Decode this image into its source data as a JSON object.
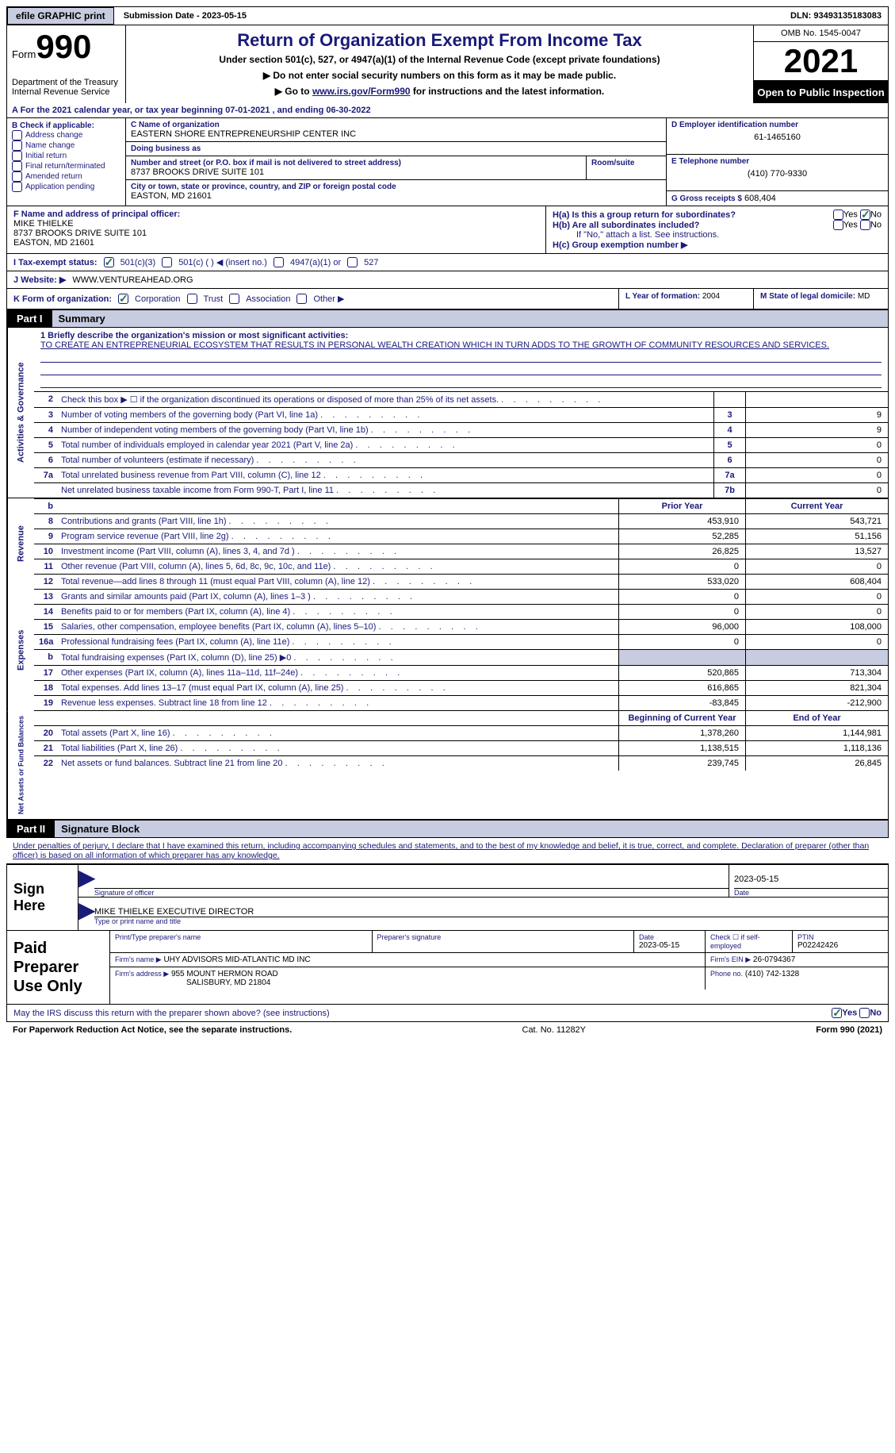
{
  "topbar": {
    "efile": "efile GRAPHIC print",
    "submission": "Submission Date - 2023-05-15",
    "dln": "DLN: 93493135183083"
  },
  "header": {
    "form_label": "Form",
    "form_number": "990",
    "dept": "Department of the Treasury Internal Revenue Service",
    "title": "Return of Organization Exempt From Income Tax",
    "sub1": "Under section 501(c), 527, or 4947(a)(1) of the Internal Revenue Code (except private foundations)",
    "sub2": "▶ Do not enter social security numbers on this form as it may be made public.",
    "sub3_pre": "▶ Go to ",
    "sub3_link": "www.irs.gov/Form990",
    "sub3_post": " for instructions and the latest information.",
    "omb": "OMB No. 1545-0047",
    "year": "2021",
    "open": "Open to Public Inspection"
  },
  "row_a": "A For the 2021 calendar year, or tax year beginning 07-01-2021    , and ending 06-30-2022",
  "section_b": {
    "label": "B Check if applicable:",
    "items": [
      "Address change",
      "Name change",
      "Initial return",
      "Final return/terminated",
      "Amended return",
      "Application pending"
    ]
  },
  "section_c": {
    "name_label": "C Name of organization",
    "name": "EASTERN SHORE ENTREPRENEURSHIP CENTER INC",
    "dba_label": "Doing business as",
    "dba": "",
    "street_label": "Number and street (or P.O. box if mail is not delivered to street address)",
    "street": "8737 BROOKS DRIVE SUITE 101",
    "room_label": "Room/suite",
    "city_label": "City or town, state or province, country, and ZIP or foreign postal code",
    "city": "EASTON, MD  21601"
  },
  "section_d": {
    "label": "D Employer identification number",
    "value": "61-1465160"
  },
  "section_e": {
    "label": "E Telephone number",
    "value": "(410) 770-9330"
  },
  "section_g": {
    "label": "G Gross receipts $",
    "value": "608,404"
  },
  "section_f": {
    "label": "F  Name and address of principal officer:",
    "name": "MIKE THIELKE",
    "addr1": "8737 BROOKS DRIVE SUITE 101",
    "addr2": "EASTON, MD  21601"
  },
  "section_h": {
    "ha": "H(a)  Is this a group return for subordinates?",
    "hb": "H(b)  Are all subordinates included?",
    "hb_note": "If \"No,\" attach a list. See instructions.",
    "hc": "H(c)  Group exemption number ▶"
  },
  "row_i": {
    "label": "I  Tax-exempt status:",
    "opts": [
      "501(c)(3)",
      "501(c) (  ) ◀ (insert no.)",
      "4947(a)(1) or",
      "527"
    ]
  },
  "row_j": {
    "label": "J  Website: ▶",
    "value": "WWW.VENTUREAHEAD.ORG"
  },
  "row_k": {
    "label": "K Form of organization:",
    "opts": [
      "Corporation",
      "Trust",
      "Association",
      "Other ▶"
    ],
    "l_label": "L Year of formation:",
    "l_val": "2004",
    "m_label": "M State of legal domicile:",
    "m_val": "MD"
  },
  "part1": {
    "num": "Part I",
    "title": "Summary"
  },
  "mission": {
    "label": "1   Briefly describe the organization's mission or most significant activities:",
    "text": "TO CREATE AN ENTREPRENEURIAL ECOSYSTEM THAT RESULTS IN PERSONAL WEALTH CREATION WHICH IN TURN ADDS TO THE GROWTH OF COMMUNITY RESOURCES AND SERVICES."
  },
  "lines_ag": [
    {
      "n": "2",
      "d": "Check this box ▶ ☐  if the organization discontinued its operations or disposed of more than 25% of its net assets.",
      "box": "",
      "v": ""
    },
    {
      "n": "3",
      "d": "Number of voting members of the governing body (Part VI, line 1a)",
      "box": "3",
      "v": "9"
    },
    {
      "n": "4",
      "d": "Number of independent voting members of the governing body (Part VI, line 1b)",
      "box": "4",
      "v": "9"
    },
    {
      "n": "5",
      "d": "Total number of individuals employed in calendar year 2021 (Part V, line 2a)",
      "box": "5",
      "v": "0"
    },
    {
      "n": "6",
      "d": "Total number of volunteers (estimate if necessary)",
      "box": "6",
      "v": "0"
    },
    {
      "n": "7a",
      "d": "Total unrelated business revenue from Part VIII, column (C), line 12",
      "box": "7a",
      "v": "0"
    },
    {
      "n": "",
      "d": "Net unrelated business taxable income from Form 990-T, Part I, line 11",
      "box": "7b",
      "v": "0"
    }
  ],
  "col_hdrs": {
    "prior": "Prior Year",
    "curr": "Current Year"
  },
  "lines_rev": [
    {
      "n": "8",
      "d": "Contributions and grants (Part VIII, line 1h)",
      "p": "453,910",
      "c": "543,721"
    },
    {
      "n": "9",
      "d": "Program service revenue (Part VIII, line 2g)",
      "p": "52,285",
      "c": "51,156"
    },
    {
      "n": "10",
      "d": "Investment income (Part VIII, column (A), lines 3, 4, and 7d )",
      "p": "26,825",
      "c": "13,527"
    },
    {
      "n": "11",
      "d": "Other revenue (Part VIII, column (A), lines 5, 6d, 8c, 9c, 10c, and 11e)",
      "p": "0",
      "c": "0"
    },
    {
      "n": "12",
      "d": "Total revenue—add lines 8 through 11 (must equal Part VIII, column (A), line 12)",
      "p": "533,020",
      "c": "608,404"
    }
  ],
  "lines_exp": [
    {
      "n": "13",
      "d": "Grants and similar amounts paid (Part IX, column (A), lines 1–3 )",
      "p": "0",
      "c": "0"
    },
    {
      "n": "14",
      "d": "Benefits paid to or for members (Part IX, column (A), line 4)",
      "p": "0",
      "c": "0"
    },
    {
      "n": "15",
      "d": "Salaries, other compensation, employee benefits (Part IX, column (A), lines 5–10)",
      "p": "96,000",
      "c": "108,000"
    },
    {
      "n": "16a",
      "d": "Professional fundraising fees (Part IX, column (A), line 11e)",
      "p": "0",
      "c": "0"
    },
    {
      "n": "b",
      "d": "Total fundraising expenses (Part IX, column (D), line 25) ▶0",
      "p": "",
      "c": "",
      "gray": true
    },
    {
      "n": "17",
      "d": "Other expenses (Part IX, column (A), lines 11a–11d, 11f–24e)",
      "p": "520,865",
      "c": "713,304"
    },
    {
      "n": "18",
      "d": "Total expenses. Add lines 13–17 (must equal Part IX, column (A), line 25)",
      "p": "616,865",
      "c": "821,304"
    },
    {
      "n": "19",
      "d": "Revenue less expenses. Subtract line 18 from line 12",
      "p": "-83,845",
      "c": "-212,900"
    }
  ],
  "col_hdrs2": {
    "prior": "Beginning of Current Year",
    "curr": "End of Year"
  },
  "lines_na": [
    {
      "n": "20",
      "d": "Total assets (Part X, line 16)",
      "p": "1,378,260",
      "c": "1,144,981"
    },
    {
      "n": "21",
      "d": "Total liabilities (Part X, line 26)",
      "p": "1,138,515",
      "c": "1,118,136"
    },
    {
      "n": "22",
      "d": "Net assets or fund balances. Subtract line 21 from line 20",
      "p": "239,745",
      "c": "26,845"
    }
  ],
  "vtabs": {
    "ag": "Activities & Governance",
    "rev": "Revenue",
    "exp": "Expenses",
    "na": "Net Assets or Fund Balances"
  },
  "part2": {
    "num": "Part II",
    "title": "Signature Block"
  },
  "sig": {
    "penalty": "Under penalties of perjury, I declare that I have examined this return, including accompanying schedules and statements, and to the best of my knowledge and belief, it is true, correct, and complete. Declaration of preparer (other than officer) is based on all information of which preparer has any knowledge.",
    "sign_here": "Sign Here",
    "sig_label": "Signature of officer",
    "date_val": "2023-05-15",
    "date_label": "Date",
    "name": "MIKE THIELKE  EXECUTIVE DIRECTOR",
    "name_label": "Type or print name and title"
  },
  "paid": {
    "title": "Paid Preparer Use Only",
    "r1": {
      "c1l": "Print/Type preparer's name",
      "c1v": "",
      "c2l": "Preparer's signature",
      "c2v": "",
      "c3l": "Date",
      "c3v": "2023-05-15",
      "c4l": "Check ☐ if self-employed",
      "c5l": "PTIN",
      "c5v": "P02242426"
    },
    "r2": {
      "c1l": "Firm's name    ▶",
      "c1v": "UHY ADVISORS MID-ATLANTIC MD INC",
      "c2l": "Firm's EIN ▶",
      "c2v": "26-0794367"
    },
    "r3": {
      "c1l": "Firm's address ▶",
      "c1v": "955 MOUNT HERMON ROAD",
      "c1v2": "SALISBURY, MD  21804",
      "c2l": "Phone no.",
      "c2v": "(410) 742-1328"
    }
  },
  "discuss": "May the IRS discuss this return with the preparer shown above? (see instructions)",
  "footer": {
    "left": "For Paperwork Reduction Act Notice, see the separate instructions.",
    "mid": "Cat. No. 11282Y",
    "right": "Form 990 (2021)"
  }
}
